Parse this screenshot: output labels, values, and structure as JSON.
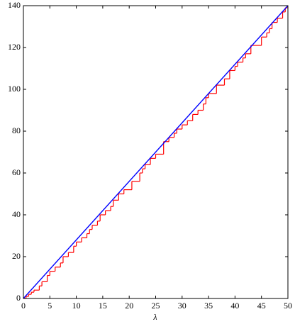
{
  "chart_data": {
    "type": "line",
    "xlabel": "λ",
    "xlim": [
      0,
      50
    ],
    "ylim": [
      0,
      140
    ],
    "xticks": [
      0,
      5,
      10,
      15,
      20,
      25,
      30,
      35,
      40,
      45,
      50
    ],
    "yticks": [
      0,
      20,
      40,
      60,
      80,
      100,
      120,
      140
    ],
    "series": [
      {
        "color": "#ff0000",
        "step": true,
        "x": [
          0,
          0.5,
          1,
          1.5,
          2,
          3,
          3.5,
          4.5,
          5,
          6,
          7,
          7.5,
          8.5,
          9.5,
          10,
          11,
          12,
          12.5,
          13,
          14,
          14.5,
          15.5,
          16.5,
          17,
          18,
          19,
          20.5,
          22,
          22.5,
          23,
          24,
          25,
          26.5,
          27.5,
          28.5,
          29,
          30,
          31,
          32,
          33,
          34,
          34.5,
          35,
          36.5,
          38,
          39,
          40,
          40.5,
          41.5,
          42,
          43,
          45,
          46,
          46.5,
          47,
          48,
          49,
          49.5,
          50
        ],
        "values": [
          0,
          1,
          2,
          3,
          4,
          6,
          8,
          11,
          13,
          15,
          17,
          20,
          22,
          25,
          27,
          29,
          31,
          33,
          35,
          37,
          40,
          42,
          44,
          47,
          50,
          52,
          56,
          60,
          62,
          64,
          67,
          69,
          75,
          77,
          79,
          81,
          83,
          85,
          88,
          90,
          93,
          96,
          98,
          102,
          105,
          109,
          111,
          113,
          115,
          117,
          121,
          125,
          127,
          129,
          132,
          134,
          137,
          139,
          139
        ]
      },
      {
        "color": "#0000ff",
        "x": [
          0,
          50
        ],
        "values": [
          0,
          140
        ]
      }
    ]
  }
}
